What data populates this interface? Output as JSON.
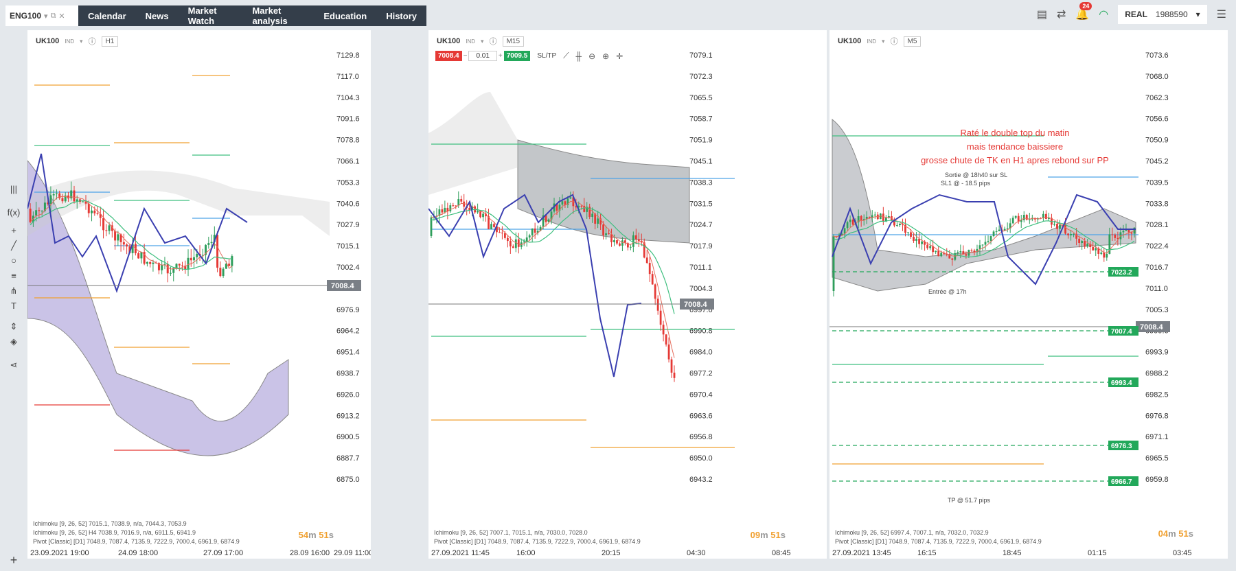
{
  "topbar": {
    "symbol": "ENG100",
    "menu": [
      "Calendar",
      "News",
      "Market Watch",
      "Market analysis",
      "Education",
      "History"
    ],
    "notifications": "24",
    "account_type": "REAL",
    "account_number": "1988590"
  },
  "charts": [
    {
      "symbol": "UK100",
      "tag": "IND",
      "timeframe": "H1",
      "prices": [
        "7129.8",
        "7117.0",
        "7104.3",
        "7091.6",
        "7078.8",
        "7066.1",
        "7053.3",
        "7040.6",
        "7027.9",
        "7015.1",
        "7002.4",
        "6989.6",
        "6976.9",
        "6964.2",
        "6951.4",
        "6938.7",
        "6926.0",
        "6913.2",
        "6900.5",
        "6887.7",
        "6875.0"
      ],
      "current_price": "7008.4",
      "legend": [
        "Ichimoku [9, 26, 52] 7015.1, 7038.9, n/a, 7044.3, 7053.9",
        "Ichimoku [9, 26, 52] H4 7038.9, 7016.9, n/a, 6911.5, 6941.9",
        "Pivot [Classic] [D1] 7048.9, 7087.4, 7135.9, 7222.9, 7000.4, 6961.9, 6874.9"
      ],
      "countdown_m": "54",
      "countdown_s": "51",
      "xlabels": [
        "23.09.2021 19:00",
        "24.09 18:00",
        "27.09 17:00",
        "28.09 16:00",
        "29.09 11:00"
      ]
    },
    {
      "symbol": "UK100",
      "tag": "IND",
      "timeframe": "M15",
      "sell": "7008.4",
      "lot": "0.01",
      "buy": "7009.5",
      "sltp": "SL/TP",
      "prices": [
        "7079.1",
        "7072.3",
        "7065.5",
        "7058.7",
        "7051.9",
        "7045.1",
        "7038.3",
        "7031.5",
        "7024.7",
        "7017.9",
        "7011.1",
        "7004.3",
        "6997.6",
        "6990.8",
        "6984.0",
        "6977.2",
        "6970.4",
        "6963.6",
        "6956.8",
        "6950.0",
        "6943.2"
      ],
      "current_price": "7008.4",
      "legend": [
        "Ichimoku [9, 26, 52] 7007.1, 7015.1, n/a, 7030.0, 7028.0",
        "Pivot [Classic] [D1] 7048.9, 7087.4, 7135.9, 7222.9, 7000.4, 6961.9, 6874.9"
      ],
      "countdown_m": "09",
      "countdown_s": "51",
      "xlabels": [
        "27.09.2021 11:45",
        "16:00",
        "20:15",
        "04:30",
        "08:45"
      ]
    },
    {
      "symbol": "UK100",
      "tag": "IND",
      "timeframe": "M5",
      "prices": [
        "7073.6",
        "7068.0",
        "7062.3",
        "7056.6",
        "7050.9",
        "7045.2",
        "7039.5",
        "7033.8",
        "7028.1",
        "7022.4",
        "7016.7",
        "7011.0",
        "7005.3",
        "6999.6",
        "6993.9",
        "6988.2",
        "6982.5",
        "6976.8",
        "6971.1",
        "6965.5",
        "6959.8"
      ],
      "current_price": "7008.4",
      "levels": [
        "7023.2",
        "7007.4",
        "6993.4",
        "6976.3",
        "6966.7"
      ],
      "annotation": [
        "Raté le double top du matin",
        "mais tendance baissiere",
        "grosse chute de TK en H1 apres rebond sur PP"
      ],
      "note_exit": "Sortie @ 18h40 sur SL",
      "note_sl": "SL1 @ - 18.5 pips",
      "note_entry": "Entrée @ 17h",
      "note_tp": "TP @ 51.7 pips",
      "legend": [
        "Ichimoku [9, 26, 52] 6997.4, 7007.1, n/a, 7032.0, 7032.9",
        "Pivot [Classic] [D1] 7048.9, 7087.4, 7135.9, 7222.9, 7000.4, 6961.9, 6874.9"
      ],
      "countdown_m": "04",
      "countdown_s": "51",
      "xlabels": [
        "27.09.2021 13:45",
        "16:15",
        "18:45",
        "01:15",
        "03:45"
      ]
    }
  ],
  "colors": {
    "bull": "#2e9e5b",
    "bear": "#e53935",
    "tenkan": "#e56b5a",
    "kijun": "#3fbf7f",
    "chikou": "#3a3fb0",
    "cloud": "#8a7ac9",
    "pivot_pp": "#f0a030",
    "pivot_r": "#3fbf7f",
    "pivot_blue": "#4da3e8"
  }
}
